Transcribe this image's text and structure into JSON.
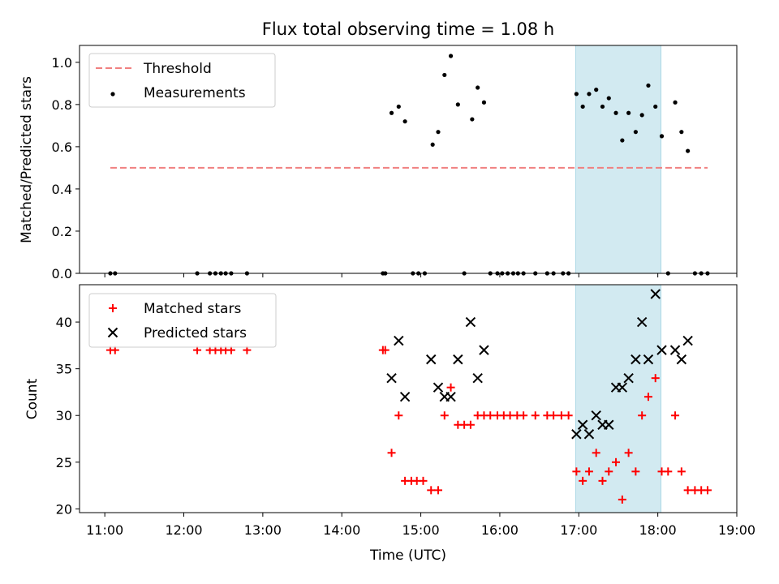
{
  "title": "Flux total observing time = 1.08 h",
  "colors": {
    "threshold": "#f08080",
    "measurement": "#000000",
    "matched": "#ff0000",
    "predicted": "#000000",
    "band": "#add8e6"
  },
  "chart_data": [
    {
      "type": "scatter",
      "title": "Flux total observing time = 1.08 h",
      "xlabel": "",
      "ylabel": "Matched/Predicted stars",
      "xlim": [
        10.68,
        19.0
      ],
      "ylim": [
        0,
        1.08
      ],
      "yticks": [
        0.0,
        0.2,
        0.4,
        0.6,
        0.8,
        1.0
      ],
      "ytick_labels": [
        "0.0",
        "0.2",
        "0.4",
        "0.6",
        "0.8",
        "1.0"
      ],
      "legend": "top-left",
      "highlight_span": [
        16.96,
        18.04
      ],
      "threshold": {
        "name": "Threshold",
        "y": 0.5,
        "x": [
          11.07,
          18.63
        ]
      },
      "series": [
        {
          "name": "Measurements",
          "x": [
            11.07,
            11.13,
            12.17,
            12.33,
            12.4,
            12.47,
            12.53,
            12.6,
            12.8,
            14.52,
            14.55,
            14.63,
            14.72,
            14.8,
            14.9,
            14.97,
            15.05,
            15.15,
            15.22,
            15.3,
            15.38,
            15.47,
            15.55,
            15.65,
            15.72,
            15.8,
            15.88,
            15.97,
            16.03,
            16.1,
            16.17,
            16.23,
            16.3,
            16.45,
            16.6,
            16.68,
            16.8,
            16.87,
            16.97,
            17.05,
            17.13,
            17.22,
            17.3,
            17.38,
            17.47,
            17.55,
            17.63,
            17.72,
            17.8,
            17.88,
            17.97,
            18.05,
            18.13,
            18.22,
            18.3,
            18.38,
            18.47,
            18.55,
            18.63
          ],
          "y": [
            0.0,
            0.0,
            0.0,
            0.0,
            0.0,
            0.0,
            0.0,
            0.0,
            0.0,
            0.0,
            0.0,
            0.76,
            0.79,
            0.72,
            0.0,
            0.0,
            0.0,
            0.61,
            0.67,
            0.94,
            1.03,
            0.8,
            0.0,
            0.73,
            0.88,
            0.81,
            0.0,
            0.0,
            0.0,
            0.0,
            0.0,
            0.0,
            0.0,
            0.0,
            0.0,
            0.0,
            0.0,
            0.0,
            0.85,
            0.79,
            0.85,
            0.87,
            0.79,
            0.83,
            0.76,
            0.63,
            0.76,
            0.67,
            0.75,
            0.89,
            0.79,
            0.65,
            0.0,
            0.81,
            0.67,
            0.58,
            0.0,
            0.0,
            0.0
          ]
        }
      ]
    },
    {
      "type": "scatter",
      "title": "",
      "xlabel": "Time (UTC)",
      "ylabel": "Count",
      "xlim": [
        10.68,
        19.0
      ],
      "ylim": [
        19.6,
        44.0
      ],
      "xticks": [
        11,
        12,
        13,
        14,
        15,
        16,
        17,
        18,
        19
      ],
      "xtick_labels": [
        "11:00",
        "12:00",
        "13:00",
        "14:00",
        "15:00",
        "16:00",
        "17:00",
        "18:00",
        "19:00"
      ],
      "yticks": [
        20,
        25,
        30,
        35,
        40
      ],
      "ytick_labels": [
        "20",
        "25",
        "30",
        "35",
        "40"
      ],
      "legend": "top-left",
      "highlight_span": [
        16.96,
        18.04
      ],
      "series": [
        {
          "name": "Matched stars",
          "marker": "+",
          "x": [
            11.07,
            11.13,
            12.17,
            12.33,
            12.4,
            12.47,
            12.53,
            12.6,
            12.8,
            14.52,
            14.55,
            14.63,
            14.72,
            14.8,
            14.88,
            14.95,
            15.03,
            15.13,
            15.22,
            15.3,
            15.38,
            15.47,
            15.55,
            15.63,
            15.72,
            15.8,
            15.88,
            15.97,
            16.05,
            16.13,
            16.22,
            16.3,
            16.45,
            16.6,
            16.68,
            16.78,
            16.87,
            16.97,
            17.05,
            17.13,
            17.22,
            17.3,
            17.38,
            17.47,
            17.55,
            17.63,
            17.72,
            17.8,
            17.88,
            17.97,
            18.05,
            18.13,
            18.22,
            18.3,
            18.38,
            18.47,
            18.55,
            18.63
          ],
          "y": [
            37,
            37,
            37,
            37,
            37,
            37,
            37,
            37,
            37,
            37,
            37,
            26,
            30,
            23,
            23,
            23,
            23,
            22,
            22,
            30,
            33,
            29,
            29,
            29,
            30,
            30,
            30,
            30,
            30,
            30,
            30,
            30,
            30,
            30,
            30,
            30,
            30,
            24,
            23,
            24,
            26,
            23,
            24,
            25,
            21,
            26,
            24,
            30,
            32,
            34,
            24,
            24,
            30,
            24,
            22,
            22,
            22,
            22
          ]
        },
        {
          "name": "Predicted stars",
          "marker": "x",
          "x": [
            14.63,
            14.72,
            14.8,
            15.13,
            15.22,
            15.3,
            15.38,
            15.47,
            15.63,
            15.72,
            15.8,
            16.97,
            17.05,
            17.13,
            17.22,
            17.3,
            17.38,
            17.47,
            17.55,
            17.63,
            17.72,
            17.8,
            17.88,
            17.97,
            18.05,
            18.22,
            18.3,
            18.38
          ],
          "y": [
            34,
            38,
            32,
            36,
            33,
            32,
            32,
            36,
            40,
            34,
            37,
            28,
            29,
            28,
            30,
            29,
            29,
            33,
            33,
            34,
            36,
            40,
            36,
            43,
            37,
            37,
            36,
            38
          ]
        }
      ]
    }
  ]
}
